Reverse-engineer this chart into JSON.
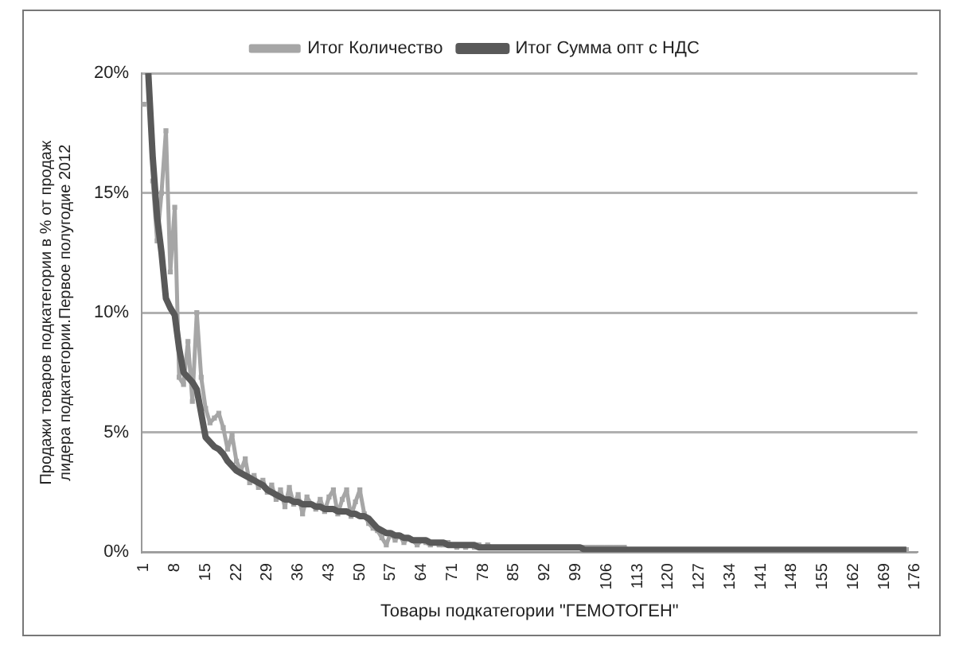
{
  "chart_data": {
    "type": "line",
    "xlabel": "Товары подкатегории \"ГЕМОТОГЕН\"",
    "ylabel": "Продажи товаров подкатегории в % от продаж лидера подкатегории.Первое полугодие 2012",
    "categories": [
      "1",
      null,
      null,
      null,
      null,
      null,
      null,
      "8",
      null,
      null,
      null,
      null,
      null,
      null,
      "15",
      null,
      null,
      null,
      null,
      null,
      null,
      "22",
      null,
      null,
      null,
      null,
      null,
      null,
      "29",
      null,
      null,
      null,
      null,
      null,
      null,
      "36",
      null,
      null,
      null,
      null,
      null,
      null,
      "43",
      null,
      null,
      null,
      null,
      null,
      null,
      "50",
      null,
      null,
      null,
      null,
      null,
      null,
      "57",
      null,
      null,
      null,
      null,
      null,
      null,
      "64",
      null,
      null,
      null,
      null,
      null,
      null,
      "71",
      null,
      null,
      null,
      null,
      null,
      null,
      "78",
      null,
      null,
      null,
      null,
      null,
      null,
      "85",
      null,
      null,
      null,
      null,
      null,
      null,
      "92",
      null,
      null,
      null,
      null,
      null,
      null,
      "99",
      null,
      null,
      null,
      null,
      null,
      null,
      "106",
      null,
      null,
      null,
      null,
      null,
      null,
      "113",
      null,
      null,
      null,
      null,
      null,
      null,
      "120",
      null,
      null,
      null,
      null,
      null,
      null,
      "127",
      null,
      null,
      null,
      null,
      null,
      null,
      "134",
      null,
      null,
      null,
      null,
      null,
      null,
      "141",
      null,
      null,
      null,
      null,
      null,
      null,
      "148",
      null,
      null,
      null,
      null,
      null,
      null,
      "155",
      null,
      null,
      null,
      null,
      null,
      null,
      "162",
      null,
      null,
      null,
      null,
      null,
      null,
      "169",
      null,
      null,
      null,
      null,
      null,
      null,
      "176"
    ],
    "series": [
      {
        "name": "Итог Количество",
        "color": "#a6a6a6",
        "marker": "square",
        "values": [
          18.7,
          null,
          15.5,
          13,
          15,
          17.6,
          11.7,
          14.4,
          7.3,
          7.0,
          8.8,
          6.3,
          10.0,
          7.3,
          6.0,
          5.4,
          5.6,
          5.8,
          5.2,
          4.3,
          4.9,
          3.8,
          3.4,
          3.9,
          2.9,
          3.2,
          2.7,
          3.0,
          2.5,
          2.8,
          2.2,
          2.6,
          1.9,
          2.7,
          2.0,
          2.4,
          1.6,
          2.3,
          2.0,
          1.8,
          2.2,
          1.7,
          2.3,
          2.6,
          1.6,
          2.2,
          2.6,
          1.5,
          2.1,
          2.6,
          1.6,
          1.2,
          1.0,
          0.9,
          0.6,
          0.3,
          0.8,
          0.5,
          0.7,
          0.4,
          0.6,
          0.5,
          0.3,
          0.5,
          0.4,
          0.3,
          0.4,
          0.3,
          0.3,
          0.4,
          0.3,
          0.2,
          0.3,
          0.2,
          0.3,
          0.2,
          0.3,
          0.2,
          0.3,
          0.2,
          0.2,
          0.2,
          0.2,
          0.2,
          0.2,
          0.2,
          0.2,
          0.2,
          0.2,
          0.2,
          0.2,
          0.2,
          0.2,
          0.2,
          0.2,
          0.2,
          0.2,
          0.2,
          0.2,
          0.2,
          0.2,
          0.2,
          0.2,
          0.2,
          0.2,
          0.2,
          0.2,
          0.2,
          0.2,
          0.2,
          0.1,
          0.1,
          0.1,
          0.1,
          0.1,
          0.1,
          0.1,
          0.1,
          0.1,
          0.1,
          0.1,
          0.1,
          0.1,
          0.1,
          0.1,
          0.1,
          0.1,
          0.1,
          0.1,
          0.1,
          0.1,
          0.1,
          0.1,
          0.1,
          0.1,
          0.1,
          0.1,
          0.1,
          0.1,
          0.1,
          0.1,
          0.1,
          0.1,
          0.1,
          0.1,
          0.1,
          0.1,
          0.1,
          0.1,
          0.1,
          0.1,
          0.1,
          0.1,
          0.1,
          0.1,
          0.1,
          0.1,
          0.1,
          0.1,
          0.1,
          0.1,
          0.1,
          0.1,
          0.1,
          0.1,
          0.1,
          0.1,
          0.1,
          0.1,
          0.1,
          0.1,
          0.1,
          0.1,
          0.1,
          null,
          null
        ]
      },
      {
        "name": "Итог Сумма опт с НДС",
        "color": "#595959",
        "marker": "none",
        "values": [
          null,
          20,
          16.5,
          14,
          12.5,
          10.6,
          10.2,
          9.9,
          8.5,
          7.5,
          7.3,
          7.1,
          6.8,
          5.8,
          4.8,
          4.6,
          4.4,
          4.3,
          4.1,
          3.8,
          3.6,
          3.4,
          3.3,
          3.2,
          3.1,
          3.0,
          2.9,
          2.8,
          2.6,
          2.5,
          2.4,
          2.3,
          2.2,
          2.2,
          2.1,
          2.1,
          2.0,
          2.0,
          2.0,
          1.9,
          1.9,
          1.8,
          1.8,
          1.8,
          1.7,
          1.7,
          1.7,
          1.6,
          1.6,
          1.5,
          1.5,
          1.4,
          1.2,
          1.0,
          0.9,
          0.8,
          0.8,
          0.7,
          0.7,
          0.6,
          0.6,
          0.5,
          0.5,
          0.5,
          0.5,
          0.4,
          0.4,
          0.4,
          0.4,
          0.3,
          0.3,
          0.3,
          0.3,
          0.3,
          0.3,
          0.3,
          0.2,
          0.2,
          0.2,
          0.2,
          0.2,
          0.2,
          0.2,
          0.2,
          0.2,
          0.2,
          0.2,
          0.2,
          0.2,
          0.2,
          0.2,
          0.2,
          0.2,
          0.2,
          0.2,
          0.2,
          0.2,
          0.2,
          0.2,
          0.2,
          0.1,
          0.1,
          0.1,
          0.1,
          0.1,
          0.1,
          0.1,
          0.1,
          0.1,
          0.1,
          0.1,
          0.1,
          0.1,
          0.1,
          0.1,
          0.1,
          0.1,
          0.1,
          0.1,
          0.1,
          0.1,
          0.1,
          0.1,
          0.1,
          0.1,
          0.1,
          0.1,
          0.1,
          0.1,
          0.1,
          0.1,
          0.1,
          0.1,
          0.1,
          0.1,
          0.1,
          0.1,
          0.1,
          0.1,
          0.1,
          0.1,
          0.1,
          0.1,
          0.1,
          0.1,
          0.1,
          0.1,
          0.1,
          0.1,
          0.1,
          0.1,
          0.1,
          0.1,
          0.1,
          0.1,
          0.1,
          0.1,
          0.1,
          0.1,
          0.1,
          0.1,
          0.1,
          0.1,
          0.1,
          0.1,
          0.1,
          0.1,
          0.1,
          0.1,
          0.1,
          0.1,
          0.1,
          0.1,
          0.1,
          null,
          null
        ]
      }
    ],
    "ylim": [
      0,
      20
    ],
    "yticks": [
      {
        "value": 0,
        "label": "0%"
      },
      {
        "value": 5,
        "label": "5%"
      },
      {
        "value": 10,
        "label": "10%"
      },
      {
        "value": 15,
        "label": "15%"
      },
      {
        "value": 20,
        "label": "20%"
      }
    ],
    "grid": "y",
    "legend": "top"
  }
}
